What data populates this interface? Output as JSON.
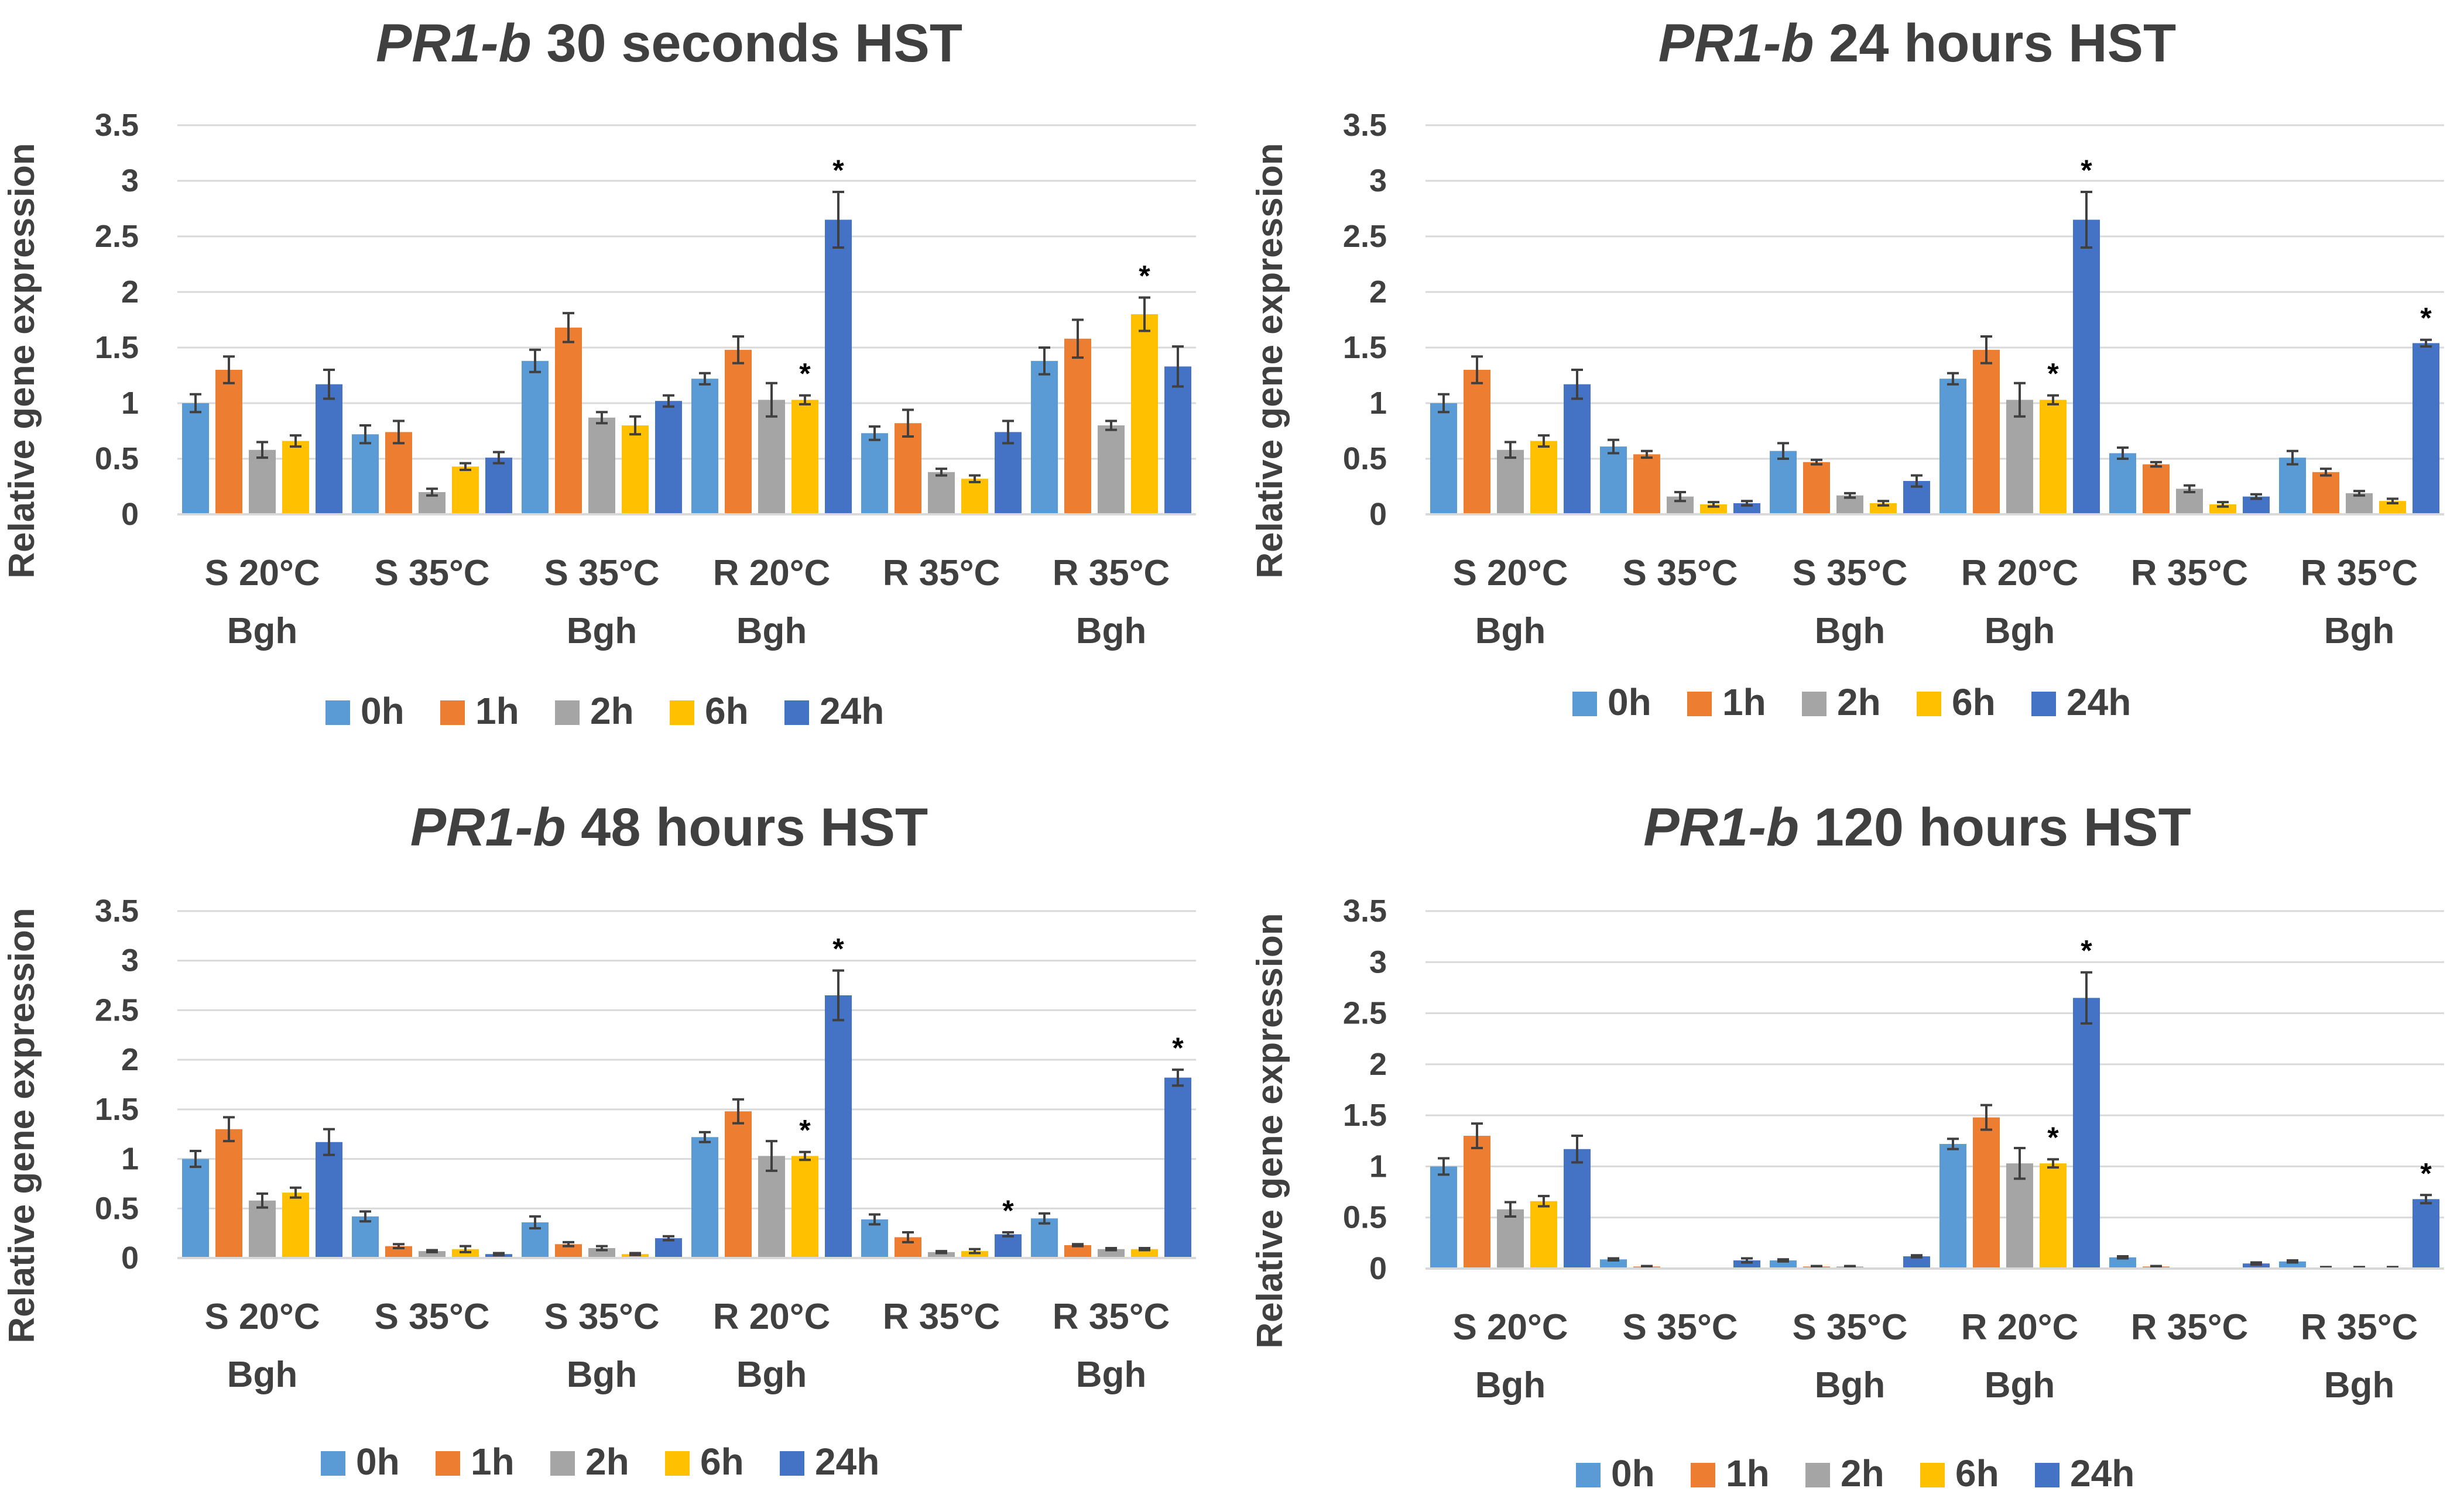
{
  "palette": {
    "0h": "#5b9bd5",
    "1h": "#ed7d31",
    "2h": "#a5a5a5",
    "6h": "#ffc000",
    "24h": "#4472c4",
    "grid": "#d9d9d9",
    "text": "#404040"
  },
  "chart_data": [
    {
      "type": "bar",
      "title_italic": "PR1-b",
      "title_rest": " 30 seconds HST",
      "ylabel": "Relative gene expression",
      "ylim": [
        0,
        3.5
      ],
      "yticks": [
        "0",
        "0.5",
        "1",
        "1.5",
        "2",
        "2.5",
        "3",
        "3.5"
      ],
      "categories": [
        [
          "S 20°C",
          "Bgh"
        ],
        [
          "S 35°C",
          ""
        ],
        [
          "S 35°C",
          "Bgh"
        ],
        [
          "R 20°C",
          "Bgh"
        ],
        [
          "R 35°C",
          ""
        ],
        [
          "R 35°C",
          "Bgh"
        ]
      ],
      "series": [
        {
          "name": "0h",
          "values": [
            1.0,
            0.72,
            1.38,
            1.22,
            0.73,
            1.38
          ],
          "errors": [
            0.08,
            0.08,
            0.1,
            0.05,
            0.06,
            0.12
          ]
        },
        {
          "name": "1h",
          "values": [
            1.3,
            0.74,
            1.68,
            1.48,
            0.82,
            1.58
          ],
          "errors": [
            0.12,
            0.1,
            0.13,
            0.12,
            0.12,
            0.17
          ]
        },
        {
          "name": "2h",
          "values": [
            0.58,
            0.2,
            0.87,
            1.03,
            0.38,
            0.8
          ],
          "errors": [
            0.07,
            0.03,
            0.05,
            0.15,
            0.03,
            0.04
          ]
        },
        {
          "name": "6h",
          "values": [
            0.66,
            0.43,
            0.8,
            1.03,
            0.32,
            1.8
          ],
          "errors": [
            0.05,
            0.03,
            0.08,
            0.04,
            0.03,
            0.15
          ]
        },
        {
          "name": "24h",
          "values": [
            1.17,
            0.51,
            1.02,
            2.65,
            0.74,
            1.33
          ],
          "errors": [
            0.13,
            0.05,
            0.05,
            0.25,
            0.1,
            0.18
          ]
        }
      ],
      "significance": [
        {
          "category": 3,
          "series": "6h",
          "mark": "*"
        },
        {
          "category": 3,
          "series": "24h",
          "mark": "*"
        },
        {
          "category": 5,
          "series": "6h",
          "mark": "*"
        }
      ],
      "legend": "bottom"
    },
    {
      "type": "bar",
      "title_italic": "PR1-b",
      "title_rest": " 24 hours HST",
      "ylabel": "Relative gene expression",
      "ylim": [
        0,
        3.5
      ],
      "yticks": [
        "0",
        "0.5",
        "1",
        "1.5",
        "2",
        "2.5",
        "3",
        "3.5"
      ],
      "categories": [
        [
          "S 20°C",
          "Bgh"
        ],
        [
          "S 35°C",
          ""
        ],
        [
          "S 35°C",
          "Bgh"
        ],
        [
          "R 20°C",
          "Bgh"
        ],
        [
          "R 35°C",
          ""
        ],
        [
          "R 35°C",
          "Bgh"
        ]
      ],
      "series": [
        {
          "name": "0h",
          "values": [
            1.0,
            0.61,
            0.57,
            1.22,
            0.55,
            0.51
          ],
          "errors": [
            0.08,
            0.06,
            0.07,
            0.05,
            0.05,
            0.06
          ]
        },
        {
          "name": "1h",
          "values": [
            1.3,
            0.54,
            0.47,
            1.48,
            0.45,
            0.38
          ],
          "errors": [
            0.12,
            0.03,
            0.02,
            0.12,
            0.02,
            0.03
          ]
        },
        {
          "name": "2h",
          "values": [
            0.58,
            0.16,
            0.17,
            1.03,
            0.23,
            0.19
          ],
          "errors": [
            0.07,
            0.04,
            0.02,
            0.15,
            0.03,
            0.02
          ]
        },
        {
          "name": "6h",
          "values": [
            0.66,
            0.09,
            0.1,
            1.03,
            0.09,
            0.12
          ],
          "errors": [
            0.05,
            0.02,
            0.02,
            0.04,
            0.02,
            0.02
          ]
        },
        {
          "name": "24h",
          "values": [
            1.17,
            0.1,
            0.3,
            2.65,
            0.16,
            1.54
          ],
          "errors": [
            0.13,
            0.02,
            0.05,
            0.25,
            0.02,
            0.03
          ]
        }
      ],
      "significance": [
        {
          "category": 3,
          "series": "6h",
          "mark": "*"
        },
        {
          "category": 3,
          "series": "24h",
          "mark": "*"
        },
        {
          "category": 5,
          "series": "24h",
          "mark": "*"
        }
      ],
      "legend": "bottom"
    },
    {
      "type": "bar",
      "title_italic": "PR1-b",
      "title_rest": " 48 hours HST",
      "ylabel": "Relative gene expression",
      "ylim": [
        0,
        3.5
      ],
      "yticks": [
        "0",
        "0.5",
        "1",
        "1.5",
        "2",
        "2.5",
        "3",
        "3.5"
      ],
      "categories": [
        [
          "S 20°C",
          "Bgh"
        ],
        [
          "S 35°C",
          ""
        ],
        [
          "S 35°C",
          "Bgh"
        ],
        [
          "R 20°C",
          "Bgh"
        ],
        [
          "R 35°C",
          ""
        ],
        [
          "R 35°C",
          "Bgh"
        ]
      ],
      "series": [
        {
          "name": "0h",
          "values": [
            1.0,
            0.42,
            0.36,
            1.22,
            0.39,
            0.4
          ],
          "errors": [
            0.08,
            0.05,
            0.06,
            0.05,
            0.05,
            0.05
          ]
        },
        {
          "name": "1h",
          "values": [
            1.3,
            0.12,
            0.14,
            1.48,
            0.21,
            0.13
          ],
          "errors": [
            0.12,
            0.02,
            0.02,
            0.12,
            0.05,
            0.01
          ]
        },
        {
          "name": "2h",
          "values": [
            0.58,
            0.07,
            0.1,
            1.03,
            0.06,
            0.09
          ],
          "errors": [
            0.07,
            0.01,
            0.02,
            0.15,
            0.01,
            0.01
          ]
        },
        {
          "name": "6h",
          "values": [
            0.66,
            0.09,
            0.04,
            1.03,
            0.07,
            0.09
          ],
          "errors": [
            0.05,
            0.03,
            0.01,
            0.04,
            0.02,
            0.01
          ]
        },
        {
          "name": "24h",
          "values": [
            1.17,
            0.04,
            0.2,
            2.65,
            0.24,
            1.82
          ],
          "errors": [
            0.13,
            0.01,
            0.02,
            0.25,
            0.02,
            0.08
          ]
        }
      ],
      "significance": [
        {
          "category": 3,
          "series": "6h",
          "mark": "*"
        },
        {
          "category": 3,
          "series": "24h",
          "mark": "*"
        },
        {
          "category": 4,
          "series": "24h",
          "mark": "*"
        },
        {
          "category": 5,
          "series": "24h",
          "mark": "*"
        }
      ],
      "legend": "bottom"
    },
    {
      "type": "bar",
      "title_italic": "PR1-b",
      "title_rest": " 120 hours HST",
      "ylabel": "Relative gene expression",
      "ylim": [
        0,
        3.5
      ],
      "yticks": [
        "0",
        "0.5",
        "1",
        "1.5",
        "2",
        "2.5",
        "3",
        "3.5"
      ],
      "categories": [
        [
          "S 20°C",
          "Bgh"
        ],
        [
          "S 35°C",
          ""
        ],
        [
          "S 35°C",
          "Bgh"
        ],
        [
          "R 20°C",
          "Bgh"
        ],
        [
          "R 35°C",
          ""
        ],
        [
          "R 35°C",
          "Bgh"
        ]
      ],
      "series": [
        {
          "name": "0h",
          "values": [
            1.0,
            0.09,
            0.08,
            1.22,
            0.11,
            0.07
          ],
          "errors": [
            0.08,
            0.01,
            0.01,
            0.05,
            0.01,
            0.01
          ]
        },
        {
          "name": "1h",
          "values": [
            1.3,
            0.02,
            0.02,
            1.48,
            0.02,
            0.01
          ],
          "errors": [
            0.12,
            0.005,
            0.005,
            0.12,
            0.005,
            0.005
          ]
        },
        {
          "name": "2h",
          "values": [
            0.58,
            0.0,
            0.02,
            1.03,
            0.0,
            0.01
          ],
          "errors": [
            0.07,
            0.0,
            0.005,
            0.15,
            0.0,
            0.005
          ]
        },
        {
          "name": "6h",
          "values": [
            0.66,
            0.0,
            0.0,
            1.03,
            0.0,
            0.01
          ],
          "errors": [
            0.05,
            0.0,
            0.0,
            0.04,
            0.0,
            0.005
          ]
        },
        {
          "name": "24h",
          "values": [
            1.17,
            0.08,
            0.12,
            2.65,
            0.05,
            0.68
          ],
          "errors": [
            0.13,
            0.02,
            0.01,
            0.25,
            0.01,
            0.04
          ]
        }
      ],
      "significance": [
        {
          "category": 3,
          "series": "6h",
          "mark": "*"
        },
        {
          "category": 3,
          "series": "24h",
          "mark": "*"
        },
        {
          "category": 5,
          "series": "24h",
          "mark": "*"
        }
      ],
      "legend": "bottom"
    }
  ]
}
